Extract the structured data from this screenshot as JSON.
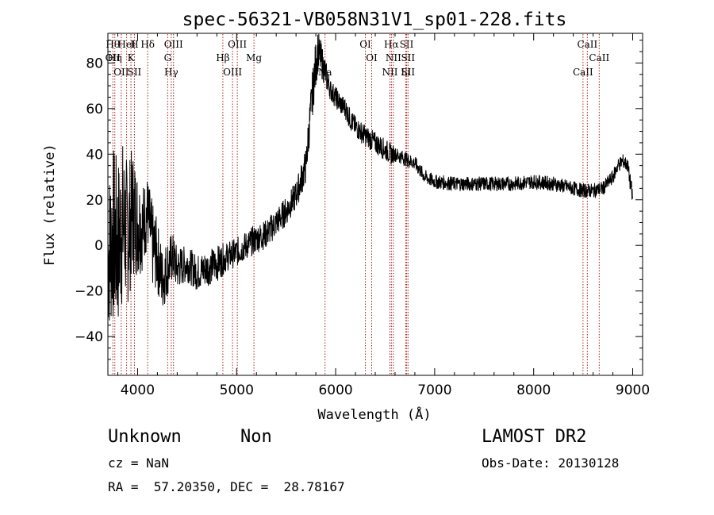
{
  "chart_data": {
    "type": "line",
    "title": "spec-56321-VB058N31V1_sp01-228.fits",
    "xlabel": "Wavelength (Å)",
    "ylabel": "Flux (relative)",
    "xlim": [
      3700,
      9100
    ],
    "ylim": [
      -57,
      93
    ],
    "xticks": [
      4000,
      5000,
      6000,
      7000,
      8000,
      9000
    ],
    "yticks": [
      -40,
      -20,
      0,
      20,
      40,
      60,
      80
    ],
    "grid": false,
    "series": [
      {
        "color": "#000000",
        "x": [
          3700,
          3750,
          3800,
          3850,
          3900,
          3950,
          4000,
          4050,
          4100,
          4150,
          4200,
          4250,
          4300,
          4350,
          4400,
          4500,
          4600,
          4700,
          4800,
          4900,
          5000,
          5100,
          5200,
          5300,
          5400,
          5500,
          5600,
          5700,
          5750,
          5800,
          5820,
          5850,
          5900,
          5950,
          6000,
          6050,
          6100,
          6150,
          6200,
          6300,
          6400,
          6500,
          6560,
          6600,
          6700,
          6800,
          6900,
          7000,
          7200,
          7400,
          7600,
          7800,
          8000,
          8200,
          8400,
          8500,
          8600,
          8700,
          8800,
          8850,
          8900,
          8950,
          9000
        ],
        "y": [
          -5,
          5,
          0,
          10,
          5,
          15,
          10,
          8,
          15,
          0,
          -5,
          -15,
          -10,
          -5,
          -10,
          -8,
          -12,
          -10,
          -8,
          -5,
          -3,
          0,
          3,
          5,
          10,
          15,
          22,
          35,
          60,
          80,
          85,
          82,
          75,
          68,
          65,
          62,
          60,
          55,
          52,
          48,
          45,
          42,
          40,
          40,
          38,
          36,
          30,
          28,
          27,
          27,
          27,
          27,
          28,
          27,
          25,
          24,
          24,
          25,
          30,
          35,
          37,
          35,
          20
        ],
        "noise": [
          22,
          25,
          24,
          23,
          20,
          18,
          15,
          12,
          10,
          12,
          10,
          9,
          8,
          7,
          6,
          5,
          5,
          5,
          5,
          4,
          4,
          4,
          4,
          4,
          4,
          4,
          4,
          5,
          6,
          7,
          6,
          5,
          4,
          3,
          3,
          3,
          3,
          3,
          3,
          3,
          3,
          3,
          3,
          2,
          2,
          2,
          2,
          2,
          2,
          2,
          2,
          2,
          2,
          2,
          2,
          2,
          2,
          2,
          2,
          2,
          2,
          2,
          3
        ]
      }
    ],
    "lines": [
      {
        "wl": 3750,
        "labels": [
          "Hθ",
          "OII"
        ]
      },
      {
        "wl": 3770,
        "labels": [
          "Hη"
        ]
      },
      {
        "wl": 3835,
        "labels": [
          "OII"
        ]
      },
      {
        "wl": 3889,
        "labels": [
          "HeI"
        ]
      },
      {
        "wl": 3933,
        "labels": [
          "K"
        ]
      },
      {
        "wl": 3968,
        "labels": [
          "SII",
          "H"
        ]
      },
      {
        "wl": 4102,
        "labels": [
          "Hδ"
        ]
      },
      {
        "wl": 4304,
        "labels": [
          "G"
        ]
      },
      {
        "wl": 4340,
        "labels": [
          "Hγ"
        ]
      },
      {
        "wl": 4363,
        "labels": [
          "OIII"
        ]
      },
      {
        "wl": 4861,
        "labels": [
          "Hβ"
        ]
      },
      {
        "wl": 4959,
        "labels": [
          "OIII"
        ]
      },
      {
        "wl": 5007,
        "labels": [
          "OIII"
        ]
      },
      {
        "wl": 5175,
        "labels": [
          "Mg"
        ]
      },
      {
        "wl": 5893,
        "labels": [
          "Na"
        ]
      },
      {
        "wl": 6300,
        "labels": [
          "OI"
        ]
      },
      {
        "wl": 6364,
        "labels": [
          "OI"
        ]
      },
      {
        "wl": 6548,
        "labels": [
          "NII"
        ]
      },
      {
        "wl": 6563,
        "labels": [
          "Hα"
        ]
      },
      {
        "wl": 6583,
        "labels": [
          "NII"
        ]
      },
      {
        "wl": 6707,
        "labels": [
          "Li"
        ]
      },
      {
        "wl": 6717,
        "labels": [
          "SII"
        ]
      },
      {
        "wl": 6731,
        "labels": [
          "SII",
          "SII"
        ]
      },
      {
        "wl": 8498,
        "labels": [
          "CaII"
        ]
      },
      {
        "wl": 8542,
        "labels": [
          "CaII"
        ]
      },
      {
        "wl": 8662,
        "labels": [
          "CaII"
        ]
      }
    ],
    "line_color": "#aa2222"
  },
  "info": {
    "class": "Unknown",
    "subclass": "Non",
    "cz": "cz = NaN",
    "coords": "RA =  57.20350, DEC =  28.78167",
    "survey": "LAMOST DR2",
    "obs_date": "Obs-Date: 20130128"
  }
}
